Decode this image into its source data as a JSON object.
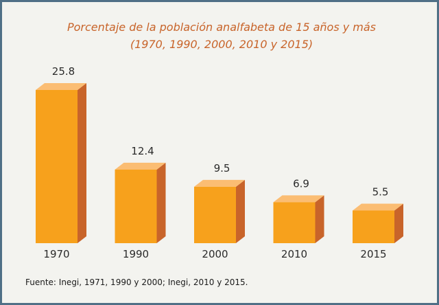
{
  "colors": {
    "border": "#4f6f86",
    "background": "#f3f3ef",
    "title": "#c8642a",
    "bar_front": "#f7a11c",
    "bar_top": "#fbbd73",
    "bar_side": "#c8642a"
  },
  "chart_data": {
    "type": "bar",
    "title": "Porcentaje de la población analfabeta de 15 años y más",
    "subtitle": "(1970, 1990, 2000, 2010 y 2015)",
    "categories": [
      "1970",
      "1990",
      "2000",
      "2010",
      "2015"
    ],
    "values": [
      25.8,
      12.4,
      9.5,
      6.9,
      5.5
    ],
    "value_labels": [
      "25.8",
      "12.4",
      "9.5",
      "6.9",
      "5.5"
    ],
    "xlabel": "",
    "ylabel": "",
    "ylim": [
      0,
      25.8
    ],
    "grid": false,
    "legend": "none",
    "style": "3d"
  },
  "source": "Fuente: Inegi, 1971, 1990 y 2000; Inegi, 2010 y 2015."
}
